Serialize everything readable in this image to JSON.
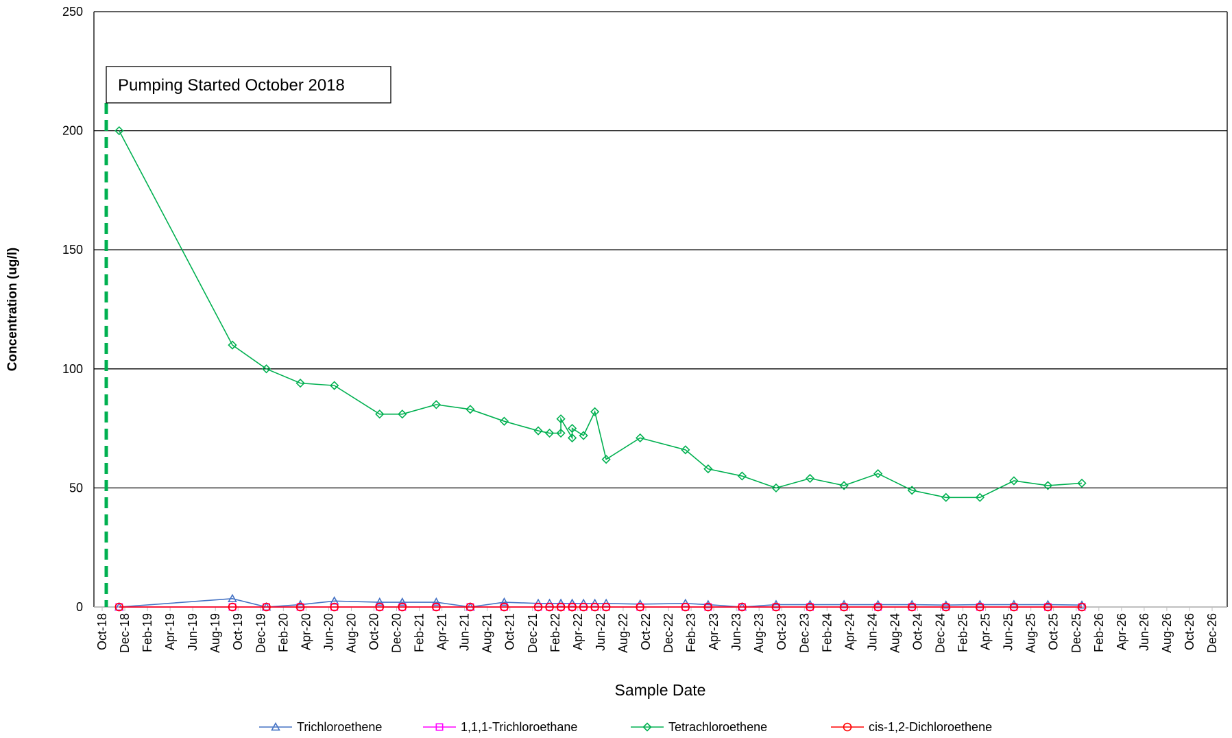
{
  "chart_data": {
    "type": "line",
    "annotation": "Pumping Started October 2018",
    "x_label": "Sample Date",
    "y_label": "Concentration (ug/l)",
    "x": [
      "Nov-18",
      "Sep-19",
      "Dec-19",
      "Mar-20",
      "Jun-20",
      "Oct-20",
      "Dec-20",
      "Mar-21",
      "Jun-21",
      "Sep-21",
      "Dec-21",
      "Jan-22",
      "Feb-22",
      "Feb-22",
      "Mar-22",
      "Mar-22",
      "Apr-22",
      "May-22",
      "Jun-22",
      "Sep-22",
      "Jan-23",
      "Mar-23",
      "Jun-23",
      "Sep-23",
      "Dec-23",
      "Mar-24",
      "Jun-24",
      "Sep-24",
      "Dec-24",
      "Mar-25",
      "Jun-25",
      "Sep-25",
      "Dec-25"
    ],
    "xlim": [
      "Oct-18",
      "Dec-26"
    ],
    "xticks": [
      "Oct-18",
      "Dec-18",
      "Feb-19",
      "Apr-19",
      "Jun-19",
      "Aug-19",
      "Oct-19",
      "Dec-19",
      "Feb-20",
      "Apr-20",
      "Jun-20",
      "Aug-20",
      "Oct-20",
      "Dec-20",
      "Feb-21",
      "Apr-21",
      "Jun-21",
      "Aug-21",
      "Oct-21",
      "Dec-21",
      "Feb-22",
      "Apr-22",
      "Jun-22",
      "Aug-22",
      "Oct-22",
      "Dec-22",
      "Feb-23",
      "Apr-23",
      "Jun-23",
      "Aug-23",
      "Oct-23",
      "Dec-23",
      "Feb-24",
      "Apr-24",
      "Jun-24",
      "Aug-24",
      "Oct-24",
      "Dec-24",
      "Feb-25",
      "Apr-25",
      "Jun-25",
      "Aug-25",
      "Oct-25",
      "Dec-25",
      "Feb-26",
      "Apr-26",
      "Jun-26",
      "Aug-26",
      "Oct-26",
      "Dec-26"
    ],
    "ylim": [
      0,
      250
    ],
    "yticks": [
      0,
      50,
      100,
      150,
      200,
      250
    ],
    "grid": true,
    "legend": "bottom",
    "series": [
      {
        "name": "Trichloroethene",
        "color": "#4472c4",
        "marker": "triangle",
        "values": [
          0,
          3.5,
          0,
          1,
          2.5,
          2,
          2,
          2,
          0,
          2,
          1.5,
          1.5,
          1.5,
          1.5,
          1.5,
          1.5,
          1.5,
          1.5,
          1.5,
          1.2,
          1.5,
          1,
          0,
          1,
          1,
          1,
          1,
          1,
          0.8,
          1,
          1,
          1,
          0.8
        ]
      },
      {
        "name": "1,1,1-Trichloroethane",
        "color": "#ff00ff",
        "marker": "square",
        "values": [
          0,
          0,
          0,
          0,
          0,
          0,
          0,
          0,
          0,
          0,
          0,
          0,
          0,
          0,
          0,
          0,
          0,
          0,
          0,
          0,
          0,
          0,
          0,
          0,
          0,
          0,
          0,
          0,
          0,
          0,
          0,
          0,
          0
        ]
      },
      {
        "name": "Tetrachloroethene",
        "color": "#00b050",
        "marker": "diamond",
        "values": [
          200,
          110,
          100,
          94,
          93,
          81,
          81,
          85,
          83,
          78,
          74,
          73,
          73,
          79,
          71,
          75,
          72,
          82,
          62,
          71,
          66,
          58,
          55,
          50,
          54,
          51,
          56,
          49,
          46,
          46,
          53,
          51,
          52
        ]
      },
      {
        "name": "cis-1,2-Dichloroethene",
        "color": "#ff0000",
        "marker": "circle",
        "values": [
          0,
          0,
          0,
          0,
          0,
          0,
          0,
          0,
          0,
          0,
          0,
          0,
          0,
          0,
          0,
          0,
          0,
          0,
          0,
          0,
          0,
          0,
          0,
          0,
          0,
          0,
          0,
          0,
          0,
          0,
          0,
          0,
          0
        ]
      }
    ]
  }
}
